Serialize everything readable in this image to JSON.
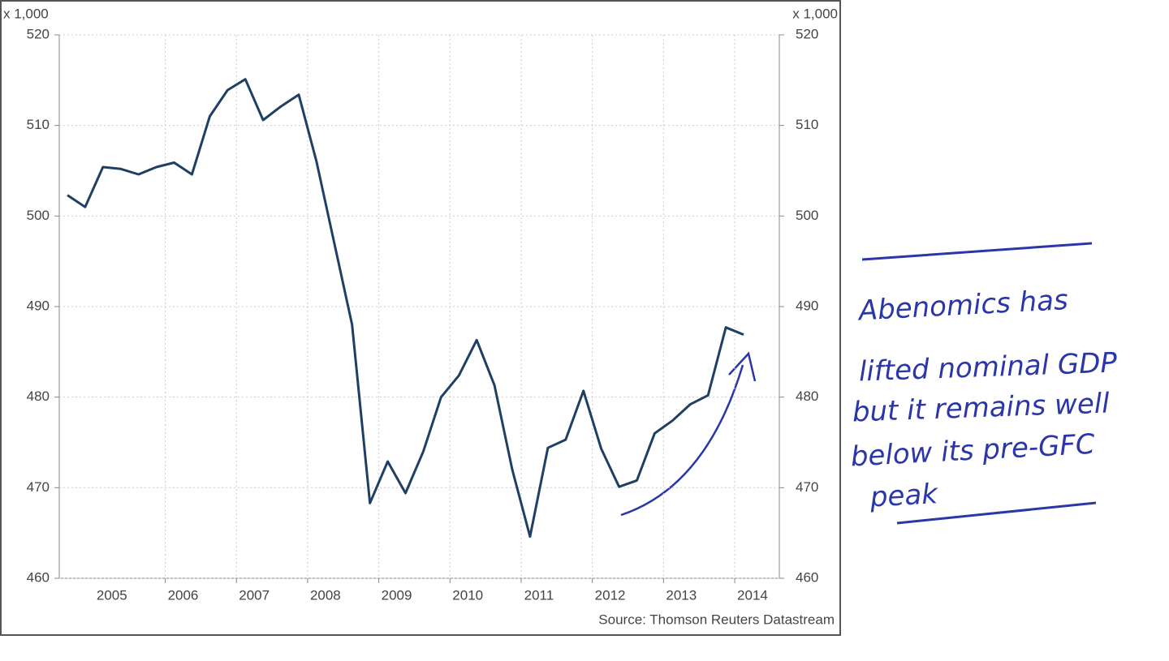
{
  "chart_data": {
    "type": "line",
    "y_unit_label": "x 1,000",
    "source": "Source: Thomson Reuters Datastream",
    "annotation": [
      "Abenomics has",
      "lifted nominal GDP",
      "but it remains well",
      "below its pre-GFC",
      "peak"
    ],
    "categories": [
      null,
      null,
      "2005",
      null,
      null,
      null,
      "2006",
      null,
      null,
      null,
      "2007",
      null,
      null,
      null,
      "2008",
      null,
      null,
      null,
      "2009",
      null,
      null,
      null,
      "2010",
      null,
      null,
      null,
      "2011",
      null,
      null,
      null,
      "2012",
      null,
      null,
      null,
      "2013",
      null,
      null,
      null,
      "2014"
    ],
    "series": [
      {
        "name": "Nominal GDP",
        "color": "#1f3f63",
        "values": [
          502.3,
          501,
          505.4,
          505.2,
          504.6,
          505.4,
          505.9,
          504.6,
          511,
          513.9,
          515.1,
          510.6,
          512.1,
          513.4,
          506,
          497,
          488,
          468.3,
          472.9,
          469.4,
          474,
          480,
          482.4,
          486.3,
          481.3,
          472,
          464.6,
          474.4,
          475.3,
          480.7,
          474.3,
          470.1,
          470.8,
          476,
          477.4,
          479.2,
          480.2,
          487.7,
          486.9
        ]
      }
    ],
    "ylim": [
      460,
      520
    ],
    "yticks": [
      460,
      470,
      480,
      490,
      500,
      510,
      520
    ],
    "grid": true
  }
}
